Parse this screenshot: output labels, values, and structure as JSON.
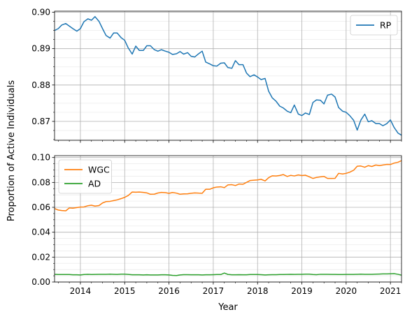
{
  "chart_data": [
    {
      "type": "line",
      "panel": "top",
      "xlabel": "",
      "ylabel": "Proportion of Active Individuals",
      "xlim": [
        2013.4167,
        2021.25
      ],
      "ylim": [
        0.8648,
        0.9003
      ],
      "yticks": [
        0.87,
        0.88,
        0.89,
        0.9
      ],
      "ytick_labels": [
        "0.87",
        "0.88",
        "0.89",
        "0.90"
      ],
      "grid": true,
      "legend": "top-right",
      "series": [
        {
          "name": "RP",
          "color": "#1f77b4",
          "x": [
            2013.42,
            2013.5,
            2013.58,
            2013.67,
            2013.75,
            2013.83,
            2013.92,
            2014.0,
            2014.08,
            2014.17,
            2014.25,
            2014.33,
            2014.42,
            2014.5,
            2014.58,
            2014.67,
            2014.75,
            2014.83,
            2014.92,
            2015.0,
            2015.08,
            2015.17,
            2015.25,
            2015.33,
            2015.42,
            2015.5,
            2015.58,
            2015.67,
            2015.75,
            2015.83,
            2015.92,
            2016.0,
            2016.08,
            2016.17,
            2016.25,
            2016.33,
            2016.42,
            2016.5,
            2016.58,
            2016.67,
            2016.75,
            2016.83,
            2016.92,
            2017.0,
            2017.08,
            2017.17,
            2017.25,
            2017.33,
            2017.42,
            2017.5,
            2017.58,
            2017.67,
            2017.75,
            2017.83,
            2017.92,
            2018.0,
            2018.08,
            2018.17,
            2018.25,
            2018.33,
            2018.42,
            2018.5,
            2018.58,
            2018.67,
            2018.75,
            2018.83,
            2018.92,
            2019.0,
            2019.08,
            2019.17,
            2019.25,
            2019.33,
            2019.42,
            2019.5,
            2019.58,
            2019.67,
            2019.75,
            2019.83,
            2019.92,
            2020.0,
            2020.08,
            2020.17,
            2020.25,
            2020.33,
            2020.42,
            2020.5,
            2020.58,
            2020.67,
            2020.75,
            2020.83,
            2020.92,
            2021.0,
            2021.08,
            2021.17,
            2021.25
          ],
          "y": [
            0.895,
            0.8955,
            0.8965,
            0.8969,
            0.8962,
            0.8955,
            0.8948,
            0.8955,
            0.8974,
            0.8982,
            0.8978,
            0.8988,
            0.8975,
            0.8955,
            0.8936,
            0.8929,
            0.8943,
            0.8943,
            0.893,
            0.8923,
            0.8902,
            0.8885,
            0.8907,
            0.8895,
            0.8895,
            0.8908,
            0.8908,
            0.8897,
            0.8893,
            0.8897,
            0.8893,
            0.889,
            0.8884,
            0.8886,
            0.8892,
            0.8885,
            0.8889,
            0.8879,
            0.8877,
            0.8886,
            0.8893,
            0.8863,
            0.8858,
            0.8853,
            0.8852,
            0.886,
            0.8861,
            0.8848,
            0.8846,
            0.8867,
            0.8856,
            0.8856,
            0.8833,
            0.8823,
            0.8828,
            0.8822,
            0.8815,
            0.8818,
            0.8783,
            0.8765,
            0.8755,
            0.8742,
            0.8737,
            0.8728,
            0.8724,
            0.8745,
            0.872,
            0.8716,
            0.8723,
            0.8719,
            0.8752,
            0.8759,
            0.8758,
            0.8748,
            0.8772,
            0.8775,
            0.8767,
            0.8738,
            0.8728,
            0.8725,
            0.8716,
            0.8703,
            0.8676,
            0.8703,
            0.872,
            0.8699,
            0.8702,
            0.8694,
            0.8694,
            0.8688,
            0.8694,
            0.8704,
            0.8684,
            0.8668,
            0.8662
          ]
        }
      ]
    },
    {
      "type": "line",
      "panel": "bottom",
      "xlabel": "Year",
      "ylabel": "",
      "xlim": [
        2013.4167,
        2021.25
      ],
      "ylim": [
        0.0,
        0.1015
      ],
      "yticks": [
        0.0,
        0.02,
        0.04,
        0.06,
        0.08,
        0.1
      ],
      "ytick_labels": [
        "0.00",
        "0.02",
        "0.04",
        "0.06",
        "0.08",
        "0.10"
      ],
      "xticks": [
        2014,
        2015,
        2016,
        2017,
        2018,
        2019,
        2020,
        2021
      ],
      "xtick_labels": [
        "2014",
        "2015",
        "2016",
        "2017",
        "2018",
        "2019",
        "2020",
        "2021"
      ],
      "grid": true,
      "legend": "top-left",
      "series": [
        {
          "name": "WGC",
          "color": "#ff7f0e",
          "x": [
            2013.42,
            2013.5,
            2013.58,
            2013.67,
            2013.75,
            2013.83,
            2013.92,
            2014.0,
            2014.08,
            2014.17,
            2014.25,
            2014.33,
            2014.42,
            2014.5,
            2014.58,
            2014.67,
            2014.75,
            2014.83,
            2014.92,
            2015.0,
            2015.08,
            2015.17,
            2015.25,
            2015.33,
            2015.42,
            2015.5,
            2015.58,
            2015.67,
            2015.75,
            2015.83,
            2015.92,
            2016.0,
            2016.08,
            2016.17,
            2016.25,
            2016.33,
            2016.42,
            2016.5,
            2016.58,
            2016.67,
            2016.75,
            2016.83,
            2016.92,
            2017.0,
            2017.08,
            2017.17,
            2017.25,
            2017.33,
            2017.42,
            2017.5,
            2017.58,
            2017.67,
            2017.75,
            2017.83,
            2017.92,
            2018.0,
            2018.08,
            2018.17,
            2018.25,
            2018.33,
            2018.42,
            2018.5,
            2018.58,
            2018.67,
            2018.75,
            2018.83,
            2018.92,
            2019.0,
            2019.08,
            2019.17,
            2019.25,
            2019.33,
            2019.42,
            2019.5,
            2019.58,
            2019.67,
            2019.75,
            2019.83,
            2019.92,
            2020.0,
            2020.08,
            2020.17,
            2020.25,
            2020.33,
            2020.42,
            2020.5,
            2020.58,
            2020.67,
            2020.75,
            2020.83,
            2020.92,
            2021.0,
            2021.08,
            2021.17,
            2021.25
          ],
          "y": [
            0.059,
            0.0578,
            0.0574,
            0.0572,
            0.0595,
            0.0593,
            0.0598,
            0.0602,
            0.0603,
            0.0613,
            0.0617,
            0.061,
            0.0614,
            0.0635,
            0.0646,
            0.0648,
            0.0654,
            0.066,
            0.067,
            0.068,
            0.0695,
            0.0723,
            0.0721,
            0.0723,
            0.072,
            0.0716,
            0.0705,
            0.0706,
            0.0715,
            0.072,
            0.0718,
            0.0712,
            0.0719,
            0.0714,
            0.0705,
            0.0708,
            0.0709,
            0.0713,
            0.0716,
            0.0714,
            0.0713,
            0.0745,
            0.0745,
            0.0757,
            0.0763,
            0.0765,
            0.0758,
            0.078,
            0.0782,
            0.0775,
            0.0787,
            0.0785,
            0.08,
            0.0815,
            0.0818,
            0.082,
            0.0825,
            0.0812,
            0.0838,
            0.0853,
            0.0852,
            0.0856,
            0.0863,
            0.0848,
            0.0857,
            0.0852,
            0.086,
            0.0855,
            0.0858,
            0.0845,
            0.0832,
            0.084,
            0.0845,
            0.0848,
            0.0832,
            0.0832,
            0.0833,
            0.0873,
            0.0868,
            0.0873,
            0.0882,
            0.0898,
            0.093,
            0.0932,
            0.0922,
            0.0935,
            0.0928,
            0.094,
            0.0935,
            0.094,
            0.0945,
            0.0944,
            0.0955,
            0.0962,
            0.0975
          ]
        },
        {
          "name": "AD",
          "color": "#2ca02c",
          "x": [
            2013.42,
            2013.5,
            2013.58,
            2013.67,
            2013.75,
            2013.83,
            2013.92,
            2014.0,
            2014.08,
            2014.17,
            2014.25,
            2014.33,
            2014.42,
            2014.5,
            2014.58,
            2014.67,
            2014.75,
            2014.83,
            2014.92,
            2015.0,
            2015.08,
            2015.17,
            2015.25,
            2015.33,
            2015.42,
            2015.5,
            2015.58,
            2015.67,
            2015.75,
            2015.83,
            2015.92,
            2016.0,
            2016.08,
            2016.17,
            2016.25,
            2016.33,
            2016.42,
            2016.5,
            2016.58,
            2016.67,
            2016.75,
            2016.83,
            2016.92,
            2017.0,
            2017.08,
            2017.17,
            2017.25,
            2017.33,
            2017.42,
            2017.5,
            2017.58,
            2017.67,
            2017.75,
            2017.83,
            2017.92,
            2018.0,
            2018.08,
            2018.17,
            2018.25,
            2018.33,
            2018.42,
            2018.5,
            2018.58,
            2018.67,
            2018.75,
            2018.83,
            2018.92,
            2019.0,
            2019.08,
            2019.17,
            2019.25,
            2019.33,
            2019.42,
            2019.5,
            2019.58,
            2019.67,
            2019.75,
            2019.83,
            2019.92,
            2020.0,
            2020.08,
            2020.17,
            2020.25,
            2020.33,
            2020.42,
            2020.5,
            2020.58,
            2020.67,
            2020.75,
            2020.83,
            2020.92,
            2021.0,
            2021.08,
            2021.17,
            2021.25
          ],
          "y": [
            0.0062,
            0.006,
            0.006,
            0.006,
            0.006,
            0.0058,
            0.0058,
            0.0057,
            0.006,
            0.0062,
            0.006,
            0.0061,
            0.0062,
            0.0062,
            0.0062,
            0.0063,
            0.0062,
            0.0061,
            0.0063,
            0.0063,
            0.0061,
            0.0058,
            0.0058,
            0.0058,
            0.0057,
            0.0058,
            0.0057,
            0.0057,
            0.0057,
            0.0058,
            0.0058,
            0.0057,
            0.0053,
            0.0052,
            0.0057,
            0.0059,
            0.0059,
            0.0058,
            0.0058,
            0.0058,
            0.0057,
            0.0058,
            0.0058,
            0.0059,
            0.006,
            0.006,
            0.0072,
            0.0061,
            0.0058,
            0.0058,
            0.0059,
            0.0058,
            0.0058,
            0.006,
            0.006,
            0.006,
            0.0059,
            0.0057,
            0.0058,
            0.0059,
            0.0059,
            0.006,
            0.006,
            0.0061,
            0.0062,
            0.0061,
            0.0062,
            0.0062,
            0.0063,
            0.0063,
            0.006,
            0.0059,
            0.0062,
            0.0062,
            0.0062,
            0.0061,
            0.0061,
            0.006,
            0.006,
            0.0061,
            0.0061,
            0.0061,
            0.0062,
            0.0063,
            0.0062,
            0.0062,
            0.0062,
            0.0063,
            0.0064,
            0.0065,
            0.0065,
            0.0066,
            0.0067,
            0.0062,
            0.0055
          ]
        }
      ]
    }
  ]
}
